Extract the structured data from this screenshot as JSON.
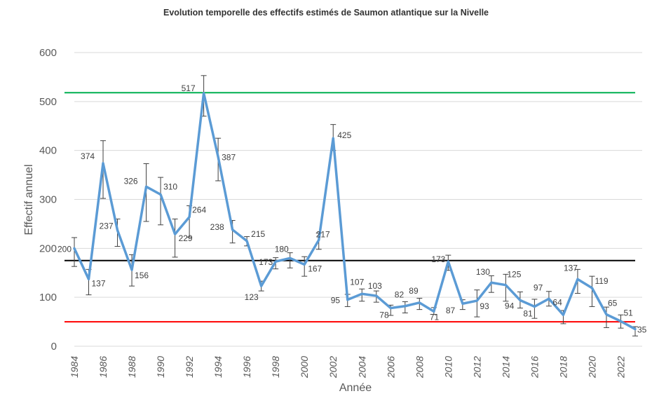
{
  "chart_data": {
    "type": "line",
    "title": "Evolution temporelle des effectifs estimés de Saumon atlantique sur la Nivelle",
    "xlabel": "Année",
    "ylabel": "Effectif annuel",
    "ylim": [
      0,
      600
    ],
    "xlim": [
      1984,
      2023
    ],
    "y_ticks": [
      0,
      100,
      200,
      300,
      400,
      500,
      600
    ],
    "x_ticks": [
      1984,
      1986,
      1988,
      1990,
      1992,
      1994,
      1996,
      1998,
      2000,
      2002,
      2004,
      2006,
      2008,
      2010,
      2012,
      2014,
      2016,
      2018,
      2020,
      2022
    ],
    "grid": "horizontal",
    "series": [
      {
        "color": "#5b9bd5",
        "x": [
          1984,
          1985,
          1986,
          1987,
          1988,
          1989,
          1990,
          1991,
          1992,
          1993,
          1994,
          1995,
          1996,
          1997,
          1998,
          1999,
          2000,
          2001,
          2002,
          2003,
          2004,
          2005,
          2006,
          2007,
          2008,
          2009,
          2010,
          2011,
          2012,
          2013,
          2014,
          2015,
          2016,
          2017,
          2018,
          2019,
          2020,
          2021,
          2022,
          2023
        ],
        "values": [
          200,
          137,
          374,
          237,
          156,
          326,
          310,
          229,
          264,
          517,
          387,
          238,
          215,
          123,
          173,
          180,
          167,
          217,
          425,
          95,
          107,
          103,
          78,
          82,
          89,
          71,
          173,
          87,
          93,
          130,
          125,
          94,
          81,
          97,
          64,
          137,
          119,
          65,
          51,
          35
        ],
        "labels": [
          "200",
          "137",
          "374",
          "237",
          "156",
          "326",
          "310",
          "229",
          "264",
          "517",
          "387",
          "238",
          "215",
          "123",
          "173",
          "180",
          "167",
          "217",
          "425",
          "95",
          "107",
          "103",
          "78",
          "82",
          "89",
          "71",
          "173",
          "87",
          "93",
          "130",
          "125",
          "94",
          "81",
          "97",
          "64",
          "137",
          "119",
          "65",
          "51",
          "35"
        ],
        "error_low": [
          163,
          105,
          302,
          204,
          123,
          255,
          248,
          182,
          223,
          470,
          338,
          211,
          205,
          113,
          158,
          160,
          143,
          198,
          400,
          81,
          92,
          90,
          63,
          68,
          75,
          65,
          155,
          75,
          60,
          110,
          92,
          78,
          57,
          82,
          46,
          108,
          81,
          38,
          37,
          21
        ],
        "error_high": [
          222,
          157,
          420,
          260,
          187,
          373,
          345,
          260,
          287,
          553,
          425,
          257,
          224,
          133,
          181,
          191,
          183,
          231,
          453,
          106,
          117,
          113,
          84,
          91,
          98,
          79,
          186,
          95,
          115,
          144,
          147,
          111,
          96,
          112,
          73,
          157,
          143,
          80,
          64,
          40
        ]
      }
    ],
    "reference_lines": [
      {
        "value": 518,
        "color": "#00b050"
      },
      {
        "value": 175,
        "color": "#000000"
      },
      {
        "value": 50,
        "color": "#ff0000"
      }
    ]
  }
}
